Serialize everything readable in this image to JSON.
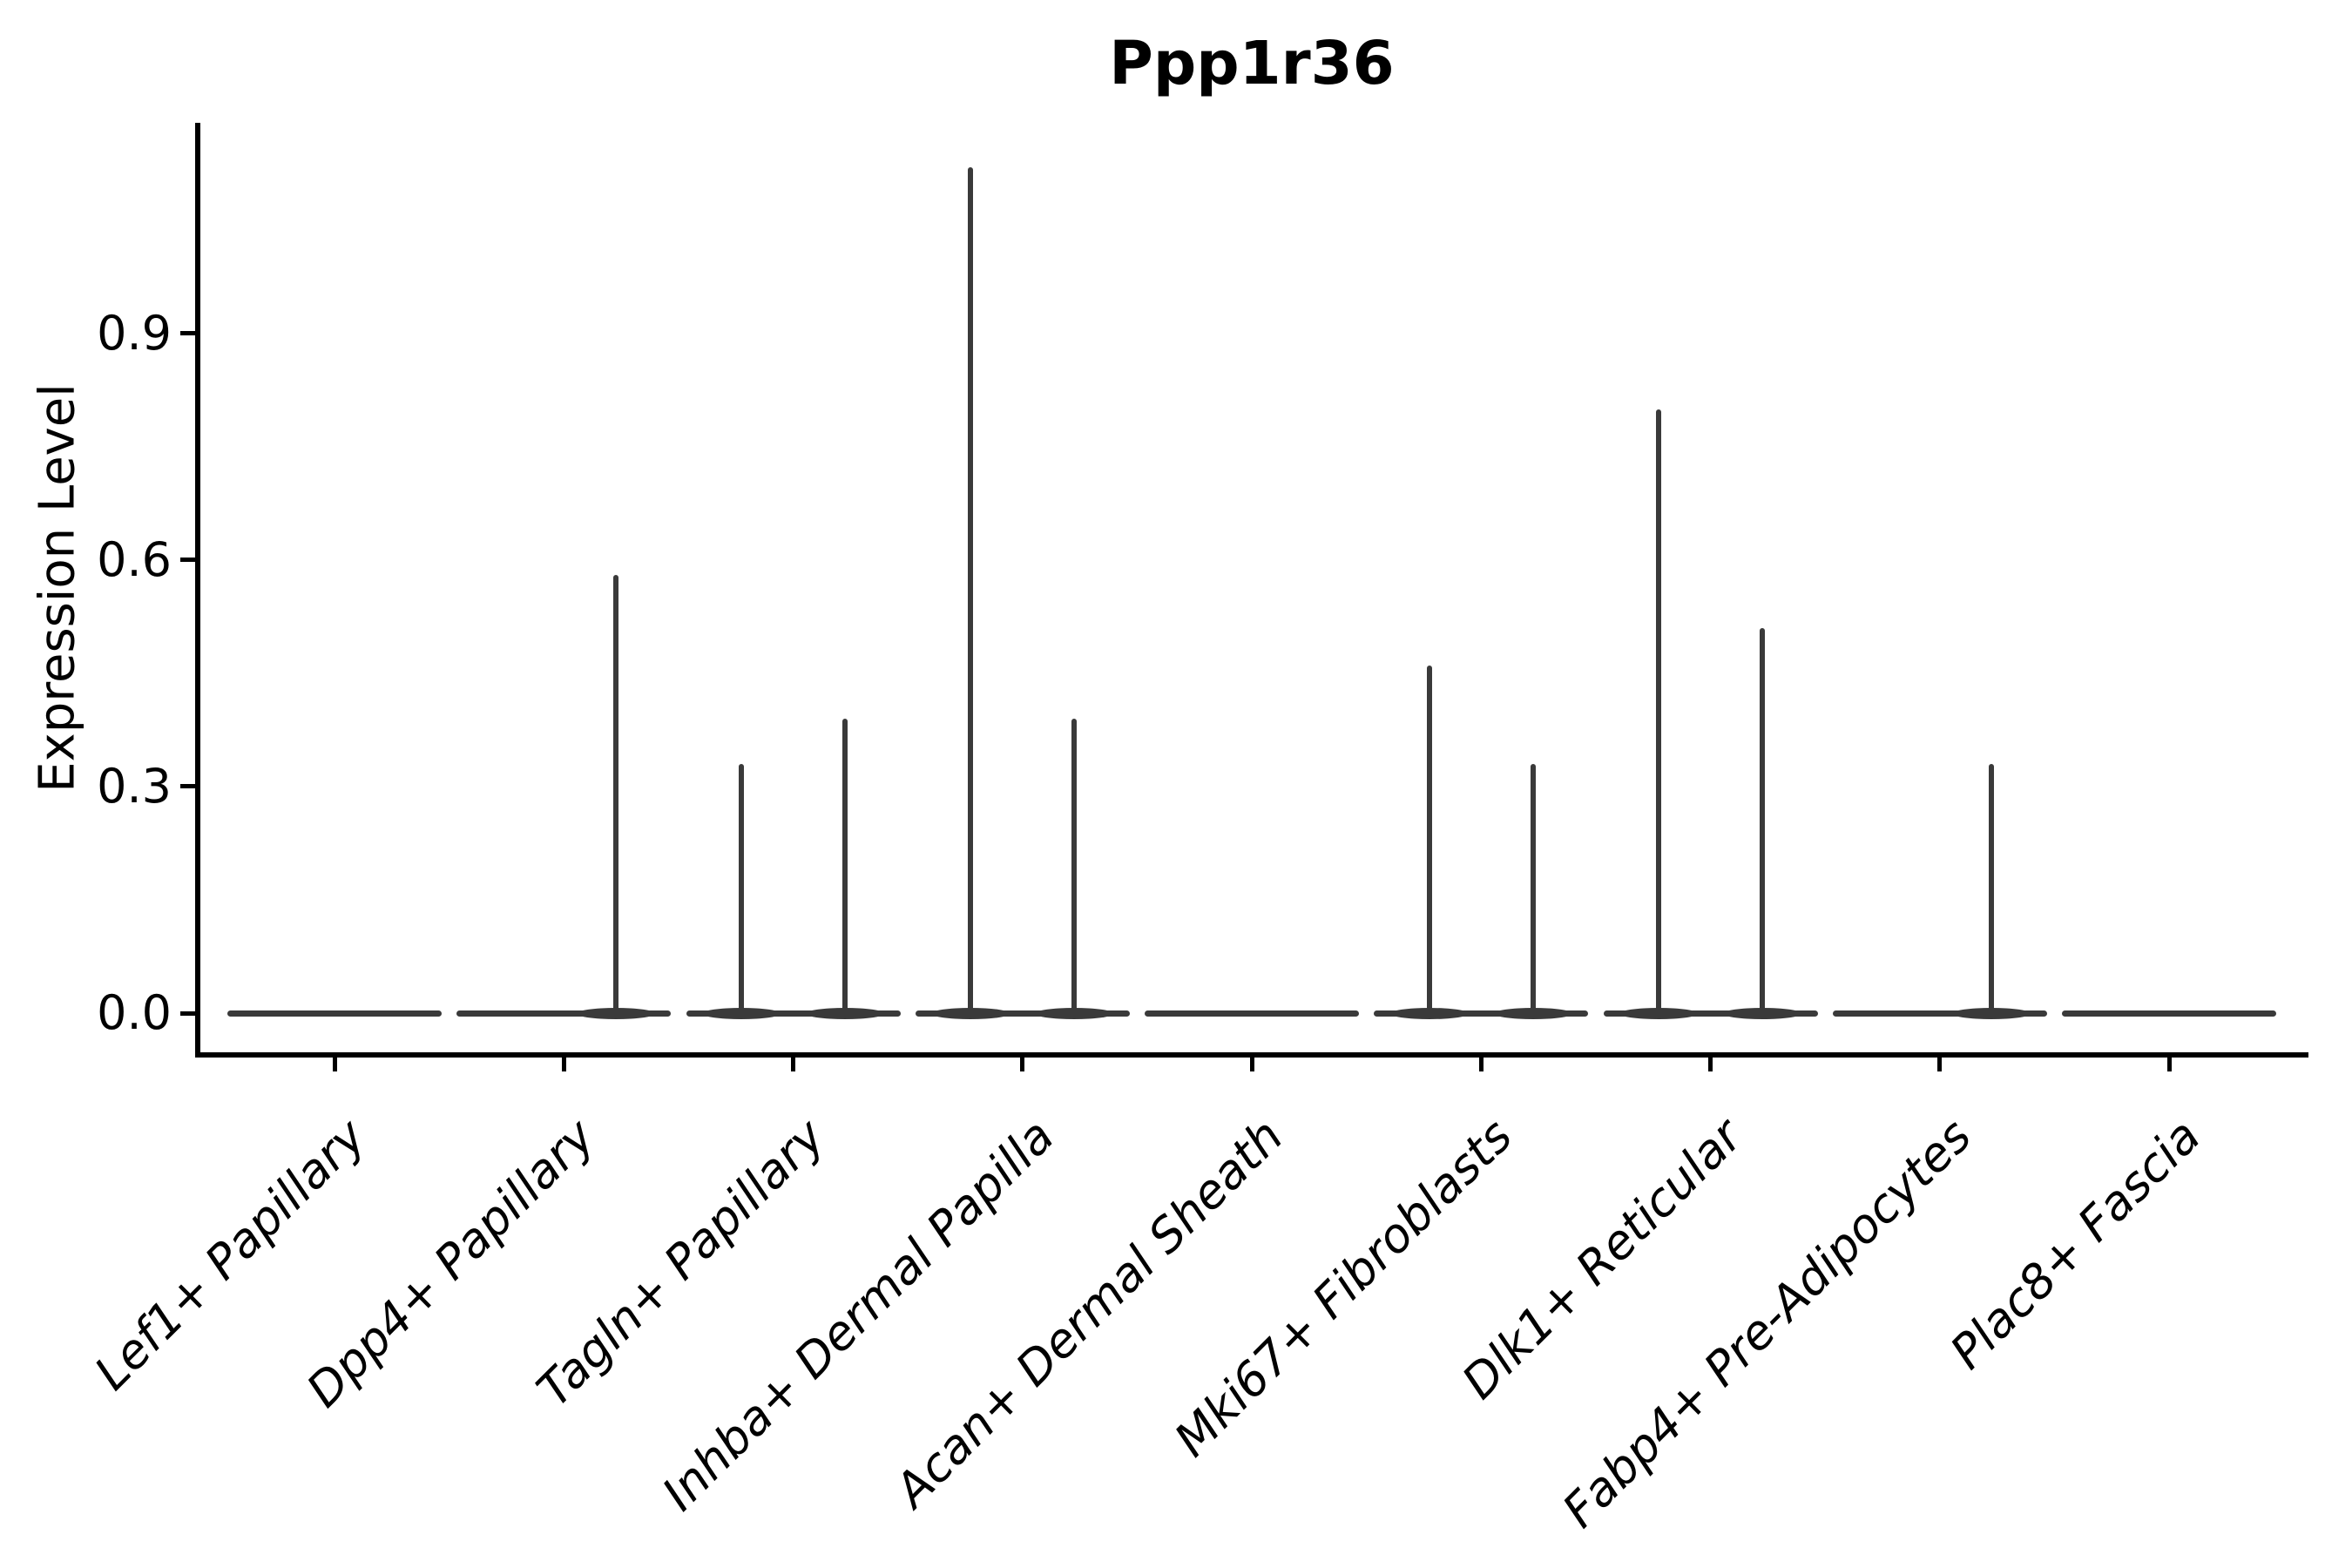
{
  "figure": {
    "title": "Ppp1r36",
    "background_color": "#ffffff",
    "axis_color": "#000000",
    "violin_color": "#3a3a3a"
  },
  "chart_data": {
    "type": "violin",
    "title": "Ppp1r36",
    "xlabel": "",
    "ylabel": "Expression Level",
    "ylim": [
      -0.06,
      1.18
    ],
    "yticks": [
      0.0,
      0.3,
      0.6,
      0.9
    ],
    "ytick_labels": [
      "0.0",
      "0.3",
      "0.6",
      "0.9"
    ],
    "grid": false,
    "legend": "none",
    "categories": [
      "Lef1+ Papillary",
      "Dpp4+ Papillary",
      "Tagln+ Papillary",
      "Inhba+ Dermal Papilla",
      "Acan+ Dermal Sheath",
      "Mki67+ Fibroblasts",
      "Dlk1+ Reticular",
      "Fabp4+ Pre-Adipocytes",
      "Plac8+ Fascia"
    ],
    "description": "Each category shows a flat violin collapsed at expression 0 with thin vertical tail spikes (two sub-violin positions per category) reaching the maximum expression level.",
    "baseline_value": 0.0,
    "violins": [
      {
        "category": "Lef1+ Papillary",
        "spikes": []
      },
      {
        "category": "Dpp4+ Papillary",
        "spikes": [
          {
            "side": "right",
            "max": 0.58
          }
        ]
      },
      {
        "category": "Tagln+ Papillary",
        "spikes": [
          {
            "side": "left",
            "max": 0.33
          },
          {
            "side": "right",
            "max": 0.39
          }
        ]
      },
      {
        "category": "Inhba+ Dermal Papilla",
        "spikes": [
          {
            "side": "left",
            "max": 1.12
          },
          {
            "side": "right",
            "max": 0.39
          }
        ]
      },
      {
        "category": "Acan+ Dermal Sheath",
        "spikes": []
      },
      {
        "category": "Mki67+ Fibroblasts",
        "spikes": [
          {
            "side": "left",
            "max": 0.46
          },
          {
            "side": "right",
            "max": 0.33
          }
        ]
      },
      {
        "category": "Dlk1+ Reticular",
        "spikes": [
          {
            "side": "left",
            "max": 0.8
          },
          {
            "side": "right",
            "max": 0.51
          }
        ]
      },
      {
        "category": "Fabp4+ Pre-Adipocytes",
        "spikes": [
          {
            "side": "right",
            "max": 0.33
          }
        ]
      },
      {
        "category": "Plac8+ Fascia",
        "spikes": []
      }
    ]
  }
}
